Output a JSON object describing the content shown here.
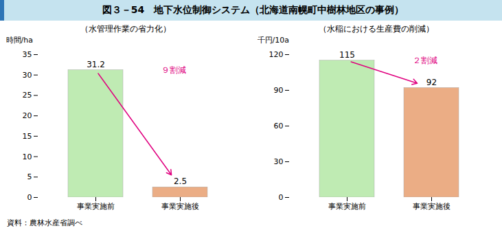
{
  "title": "図３－54　地下水位制御システム（北海道南幌町中樹林地区の事例）",
  "source": "資料：農林水産省調べ",
  "chart_data": [
    {
      "type": "bar",
      "subtitle": "（水管理作業の省力化）",
      "ylabel": "時間/ha",
      "categories": [
        "事業実施前",
        "事業実施後"
      ],
      "values": [
        31.2,
        2.5
      ],
      "colors": [
        "#bfebb3",
        "#ebad85"
      ],
      "ylim": [
        0,
        35
      ],
      "yticks": [
        0,
        5,
        10,
        15,
        20,
        25,
        30,
        35
      ],
      "data_labels": true,
      "annotations": [
        {
          "text": "９割減",
          "color": "#e0007f"
        }
      ]
    },
    {
      "type": "bar",
      "subtitle": "（水稲における生産費の削減）",
      "ylabel": "千円/10a",
      "categories": [
        "事業実施前",
        "事業実施後"
      ],
      "values": [
        115,
        92
      ],
      "colors": [
        "#bfebb3",
        "#ebad85"
      ],
      "ylim": [
        0,
        120
      ],
      "yticks": [
        0,
        30,
        60,
        90,
        120
      ],
      "data_labels": true,
      "annotations": [
        {
          "text": "２割減",
          "color": "#e0007f"
        }
      ]
    }
  ]
}
